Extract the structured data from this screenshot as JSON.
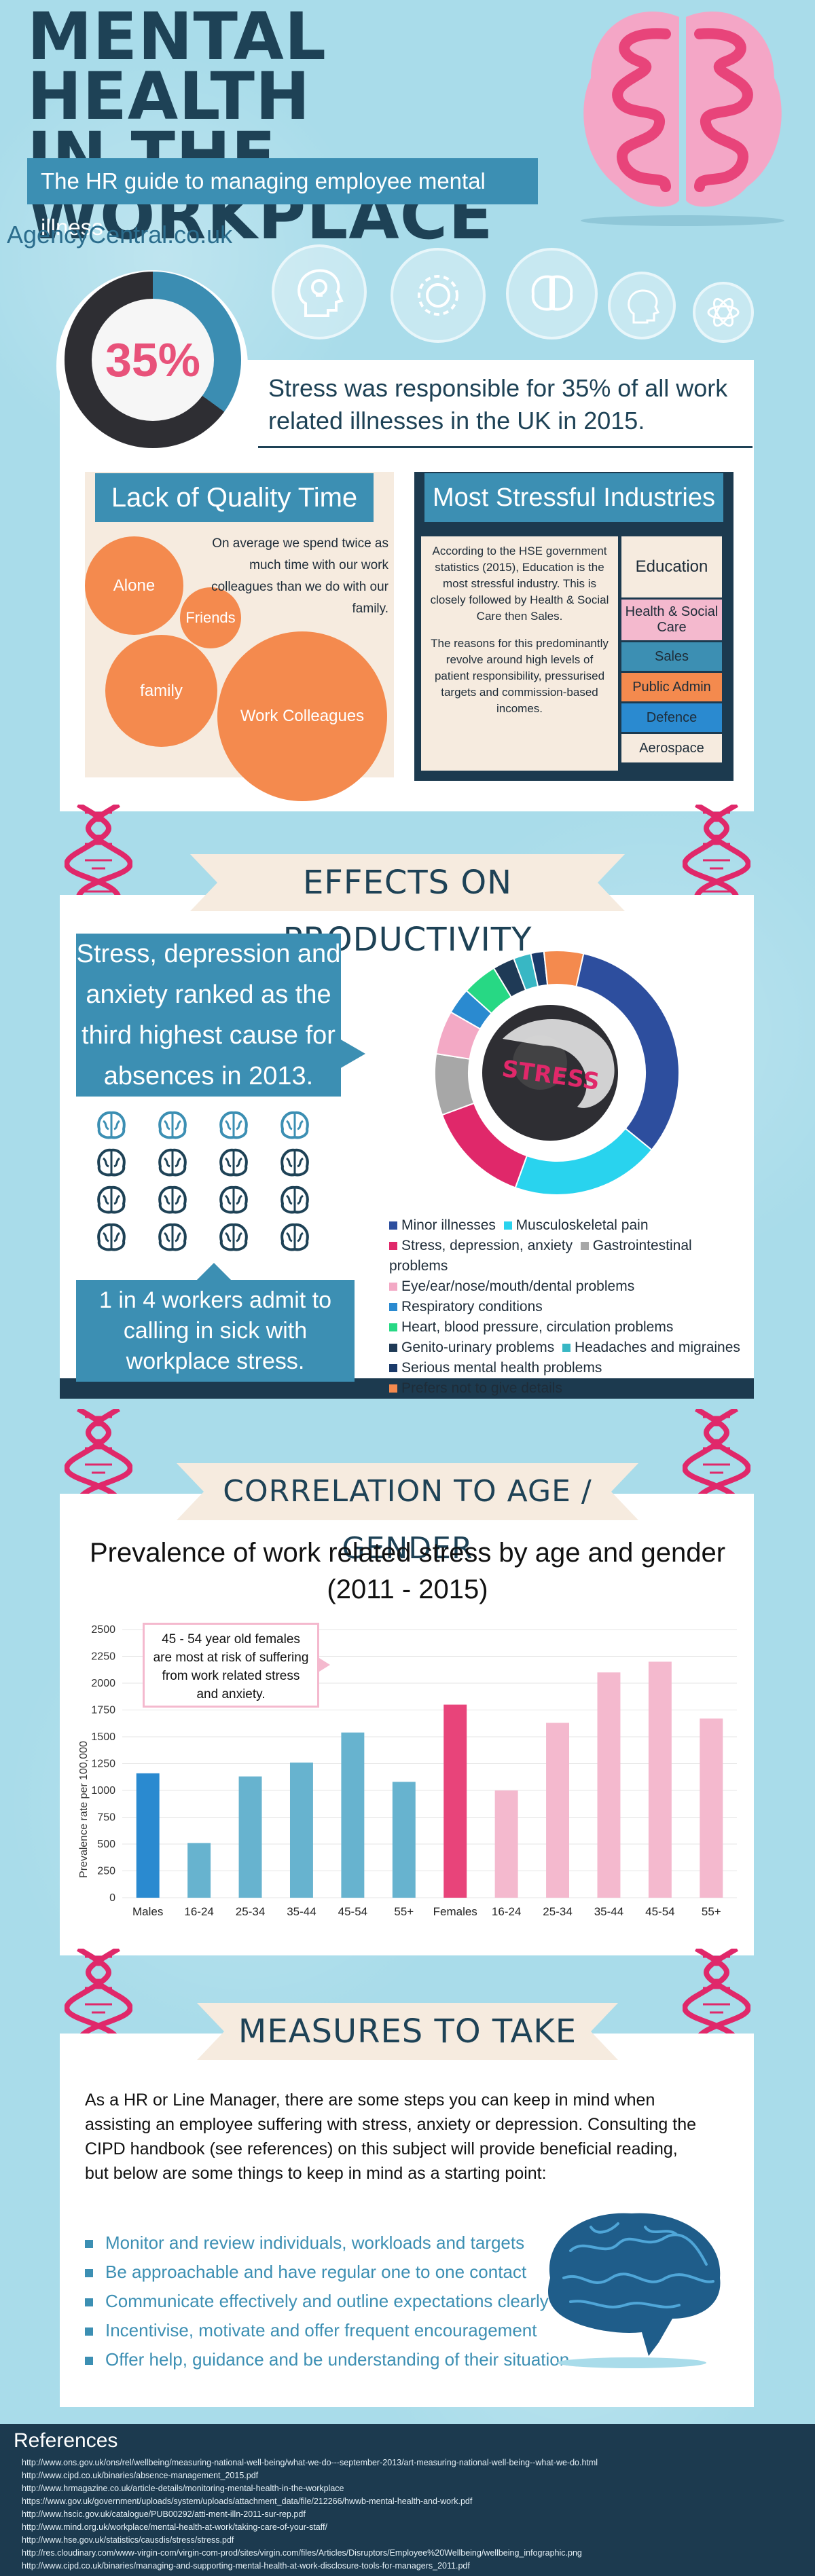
{
  "header": {
    "title_line1": "MENTAL HEALTH",
    "title_line2": "IN THE WORKPLACE",
    "subtitle": "The HR guide to managing employee mental illness",
    "site": "AgencyCentral.co.uk"
  },
  "stat": {
    "percent_label": "35%",
    "percent": 35,
    "text": "Stress was responsible for 35% of all work related illnesses in the UK in 2015."
  },
  "quality_time": {
    "heading": "Lack of Quality Time",
    "text": "On average we spend twice as much time with our work colleagues than we do with our family.",
    "bubbles": [
      "Alone",
      "Friends",
      "family",
      "Work Colleagues"
    ]
  },
  "industries": {
    "heading": "Most Stressful Industries",
    "text1": "According to the HSE government statistics (2015), Education is the most stressful industry. This is closely followed by Health & Social Care then Sales.",
    "text2": "The reasons for this predominantly revolve around high levels of patient responsibility, pressurised targets and commission-based incomes.",
    "list": [
      "Education",
      "Health & Social Care",
      "Sales",
      "Public Admin",
      "Defence",
      "Aerospace"
    ]
  },
  "productivity": {
    "heading": "EFFECTS ON PRODUCTIVITY",
    "callout": "Stress, depression and anxiety ranked as the third highest cause for absences in 2013.",
    "workers": "1 in 4 workers admit to calling in sick with workplace stress.",
    "ball_label": "STRESS",
    "legend": [
      {
        "label": "Minor illnesses",
        "color": "#2d4e9e"
      },
      {
        "label": "Musculoskeletal pain",
        "color": "#29d3ee"
      },
      {
        "label": "Stress, depression, anxiety",
        "color": "#e0286a"
      },
      {
        "label": "Gastrointestinal problems",
        "color": "#a7a7a7"
      },
      {
        "label": "Eye/ear/nose/mouth/dental problems",
        "color": "#f3a9c5"
      },
      {
        "label": "Respiratory conditions",
        "color": "#2a8ad0"
      },
      {
        "label": "Heart, blood pressure, circulation problems",
        "color": "#27d884"
      },
      {
        "label": "Genito-urinary problems",
        "color": "#1f3a56"
      },
      {
        "label": "Headaches and migraines",
        "color": "#38b7c4"
      },
      {
        "label": "Serious mental health problems",
        "color": "#1a3a6a"
      },
      {
        "label": "Prefers not to give details",
        "color": "#f48a4e"
      }
    ]
  },
  "correlation": {
    "heading": "CORRELATION TO AGE / GENDER",
    "note": "45 - 54 year old females are most at risk of suffering from work related stress and anxiety."
  },
  "chart_data": {
    "type": "bar",
    "title": "Prevalence of work related stress by age and gender (2011 - 2015)",
    "ylabel": "Prevalence rate per 100,000",
    "xlabel": "",
    "ylim": [
      0,
      2500
    ],
    "yticks": [
      0,
      250,
      500,
      750,
      1000,
      1250,
      1500,
      1750,
      2000,
      2250,
      2500
    ],
    "categories": [
      "Males",
      "16-24",
      "25-34",
      "35-44",
      "45-54",
      "55+",
      "Females",
      "16-24",
      "25-34",
      "35-44",
      "45-54",
      "55+"
    ],
    "values": [
      1160,
      510,
      1130,
      1260,
      1540,
      1080,
      1800,
      1000,
      1630,
      2100,
      2200,
      1670
    ],
    "colors": [
      "#2a8ad0",
      "#67b3cf",
      "#67b3cf",
      "#67b3cf",
      "#67b3cf",
      "#67b3cf",
      "#e8447a",
      "#f4b9ce",
      "#f4b9ce",
      "#f4b9ce",
      "#f4b9ce",
      "#f4b9ce"
    ],
    "grid": true
  },
  "measures": {
    "heading": "MEASURES TO TAKE",
    "intro": "As a HR or Line Manager, there are some steps you can keep in mind when assisting an employee suffering with stress, anxiety or depression. Consulting the CIPD handbook (see references) on this subject will provide beneficial reading, but below are some things to keep in mind as a starting point:",
    "items": [
      "Monitor and review individuals, workloads and targets",
      "Be approachable and have regular one to one contact",
      "Communicate effectively and outline expectations clearly",
      "Incentivise, motivate and offer frequent encouragement",
      "Offer help, guidance and be understanding of their situation"
    ]
  },
  "references": {
    "heading": "References",
    "items": [
      "http://www.ons.gov.uk/ons/rel/wellbeing/measuring-national-well-being/what-we-do---september-2013/art-measuring-national-well-being--what-we-do.html",
      "http://www.cipd.co.uk/binaries/absence-management_2015.pdf",
      "http://www.hrmagazine.co.uk/article-details/monitoring-mental-health-in-the-workplace",
      "https://www.gov.uk/government/uploads/system/uploads/attachment_data/file/212266/hwwb-mental-health-and-work.pdf",
      "http://www.hscic.gov.uk/catalogue/PUB00292/atti-ment-illn-2011-sur-rep.pdf",
      "http://www.mind.org.uk/workplace/mental-health-at-work/taking-care-of-your-staff/",
      "http://www.hse.gov.uk/statistics/causdis/stress/stress.pdf",
      "http://res.cloudinary.com/www-virgin-com/virgin-com-prod/sites/virgin.com/files/Articles/Disruptors/Employee%20Wellbeing/wellbeing_infographic.png",
      "http://www.cipd.co.uk/binaries/managing-and-supporting-mental-health-at-work-disclosure-tools-for-managers_2011.pdf"
    ]
  }
}
